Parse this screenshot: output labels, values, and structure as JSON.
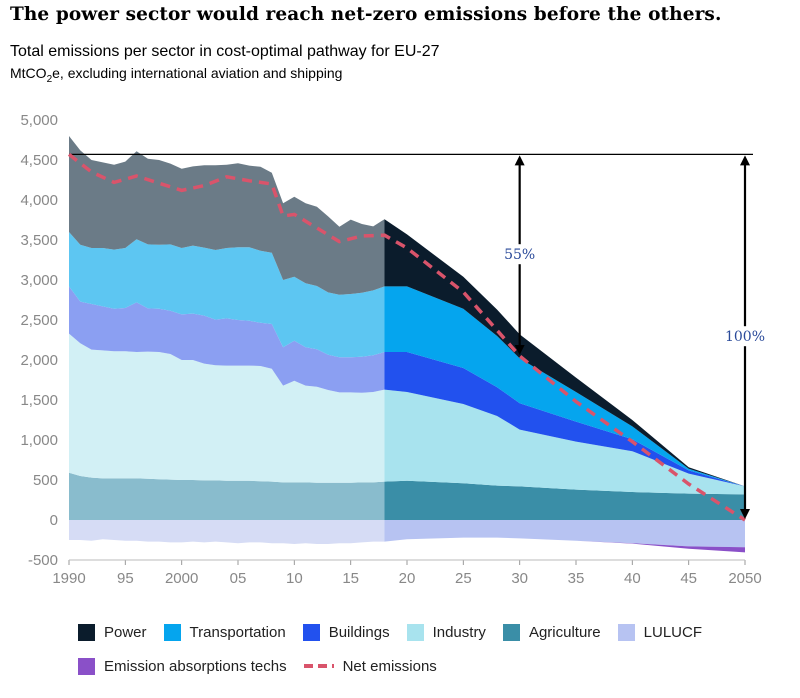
{
  "headline": "The power sector would reach net-zero emissions before the others.",
  "chart_data": {
    "type": "area",
    "title": "Total emissions per sector in cost-optimal pathway for EU-27",
    "subtitle_pre": "MtCO",
    "subtitle_sub": "2",
    "subtitle_post": "e, excluding international aviation and shipping",
    "xlim": [
      1990,
      2050
    ],
    "ylim": [
      -500,
      5000
    ],
    "y_ticks": [
      5000,
      4500,
      4000,
      3500,
      3000,
      2500,
      2000,
      1500,
      1000,
      500,
      0,
      -500
    ],
    "y_tick_labels": [
      "5,000",
      "4,500",
      "4,000",
      "3,500",
      "3,000",
      "2,500",
      "2,000",
      "1,500",
      "1,000",
      "500",
      "0",
      "-500"
    ],
    "x_ticks": [
      1990,
      1995,
      2000,
      2005,
      2010,
      2015,
      2020,
      2025,
      2030,
      2035,
      2040,
      2045,
      2050
    ],
    "x_tick_labels": [
      "1990",
      "95",
      "2000",
      "05",
      "10",
      "15",
      "20",
      "25",
      "30",
      "35",
      "40",
      "45",
      "2050"
    ],
    "historical_end": 2018,
    "x": [
      1990,
      1991,
      1992,
      1993,
      1994,
      1995,
      1996,
      1997,
      1998,
      1999,
      2000,
      2001,
      2002,
      2003,
      2004,
      2005,
      2006,
      2007,
      2008,
      2009,
      2010,
      2011,
      2012,
      2013,
      2014,
      2015,
      2016,
      2017,
      2018,
      2020,
      2025,
      2028,
      2030,
      2035,
      2040,
      2045,
      2050
    ],
    "series": [
      {
        "name": "Agriculture",
        "values": [
          590,
          550,
          530,
          520,
          520,
          520,
          520,
          515,
          510,
          505,
          500,
          500,
          495,
          495,
          490,
          490,
          490,
          485,
          480,
          470,
          470,
          470,
          465,
          465,
          465,
          465,
          470,
          470,
          480,
          490,
          460,
          430,
          420,
          380,
          350,
          330,
          320
        ]
      },
      {
        "name": "Industry",
        "values": [
          1740,
          1660,
          1600,
          1600,
          1590,
          1590,
          1580,
          1590,
          1590,
          1570,
          1500,
          1500,
          1460,
          1440,
          1440,
          1440,
          1440,
          1440,
          1410,
          1210,
          1270,
          1210,
          1200,
          1160,
          1130,
          1130,
          1120,
          1130,
          1150,
          1110,
          990,
          870,
          710,
          600,
          510,
          250,
          100
        ]
      },
      {
        "name": "Buildings",
        "values": [
          590,
          520,
          570,
          550,
          530,
          540,
          620,
          540,
          540,
          540,
          570,
          580,
          600,
          570,
          590,
          570,
          560,
          540,
          560,
          480,
          500,
          480,
          470,
          440,
          440,
          440,
          450,
          460,
          470,
          500,
          450,
          360,
          330,
          250,
          150,
          40,
          0
        ]
      },
      {
        "name": "Transportation",
        "values": [
          680,
          710,
          700,
          730,
          740,
          750,
          790,
          800,
          800,
          830,
          830,
          850,
          850,
          870,
          880,
          910,
          920,
          900,
          890,
          840,
          800,
          800,
          790,
          780,
          780,
          790,
          800,
          810,
          820,
          820,
          740,
          640,
          560,
          370,
          160,
          20,
          0
        ]
      },
      {
        "name": "Power",
        "values": [
          1200,
          1180,
          1100,
          1070,
          1060,
          1080,
          1100,
          1070,
          1060,
          1010,
          990,
          990,
          1030,
          1060,
          1040,
          1050,
          1020,
          1050,
          1000,
          960,
          1000,
          1000,
          990,
          950,
          850,
          930,
          860,
          800,
          840,
          650,
          400,
          330,
          300,
          180,
          80,
          20,
          0
        ]
      }
    ],
    "negative_series": [
      {
        "name": "LULUCF",
        "values": [
          -250,
          -250,
          -260,
          -240,
          -250,
          -260,
          -260,
          -270,
          -270,
          -280,
          -280,
          -270,
          -280,
          -270,
          -280,
          -290,
          -280,
          -280,
          -290,
          -290,
          -300,
          -290,
          -300,
          -300,
          -290,
          -290,
          -280,
          -270,
          -270,
          -240,
          -220,
          -220,
          -230,
          -260,
          -290,
          -330,
          -340
        ]
      },
      {
        "name": "Emission absorptions techs",
        "values": [
          0,
          0,
          0,
          0,
          0,
          0,
          0,
          0,
          0,
          0,
          0,
          0,
          0,
          0,
          0,
          0,
          0,
          0,
          0,
          0,
          0,
          0,
          0,
          0,
          0,
          0,
          0,
          0,
          0,
          0,
          0,
          0,
          0,
          0,
          -5,
          -30,
          -65
        ]
      }
    ],
    "net_emissions": {
      "name": "Net emissions",
      "x": [
        1990,
        1992,
        1994,
        1996,
        1998,
        2000,
        2002,
        2004,
        2006,
        2008,
        2009,
        2010,
        2012,
        2014,
        2016,
        2018,
        2020,
        2025,
        2030,
        2035,
        2040,
        2045,
        2050
      ],
      "values": [
        4570,
        4350,
        4220,
        4300,
        4210,
        4120,
        4180,
        4290,
        4240,
        4200,
        3800,
        3820,
        3650,
        3480,
        3550,
        3560,
        3400,
        2850,
        2050,
        1480,
        980,
        450,
        0
      ]
    },
    "reference_line": 4570,
    "annotations": [
      {
        "label": "55%",
        "x": 2030,
        "from": 4570,
        "to": 2050
      },
      {
        "label": "100%",
        "x": 2050,
        "from": 4570,
        "to": 0
      }
    ],
    "legend_rows": [
      [
        "Power",
        "Transportation",
        "Buildings",
        "Industry",
        "Agriculture",
        "LULUCF"
      ],
      [
        "Emission absorptions techs",
        "Net emissions"
      ]
    ],
    "colors": {
      "Power_hist": "#6b7b87",
      "Power": "#0b1c2c",
      "Transportation_hist": "#5dc6f2",
      "Transportation": "#05a5ee",
      "Buildings_hist": "#8b9ff2",
      "Buildings": "#2251ee",
      "Industry_hist": "#d2f0f5",
      "Industry": "#a8e3ee",
      "Agriculture_hist": "#89bccd",
      "Agriculture": "#3a8ea7",
      "LULUCF_hist": "#d6dcf5",
      "LULUCF": "#b7c3f2",
      "Emission absorptions techs": "#8a50c8",
      "Net emissions": "#d9546b",
      "legend_Power": "#0b1c2c",
      "legend_Transportation": "#05a5ee",
      "legend_Buildings": "#2251ee",
      "legend_Industry": "#a8e3ee",
      "legend_Agriculture": "#3a8ea7",
      "legend_LULUCF": "#b7c3f2",
      "legend_Emission absorptions techs": "#8a50c8"
    }
  }
}
